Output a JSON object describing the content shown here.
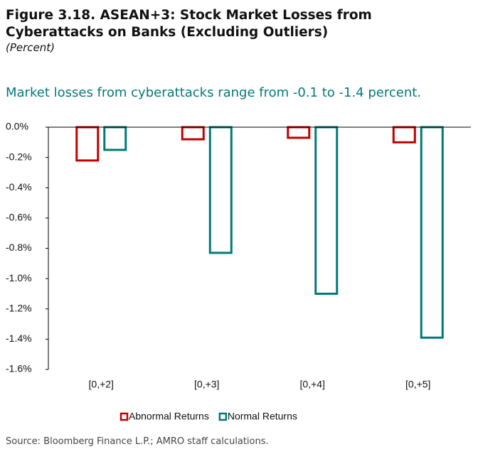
{
  "chart_data": {
    "type": "bar",
    "title": "Figure 3.18. ASEAN+3: Stock Market Losses from Cyberattacks on Banks (Excluding Outliers)",
    "subtitle": "(Percent)",
    "annotation": "Market losses from cyberattacks range from -0.1 to -1.4 percent.",
    "source": "Source: Bloomberg Finance L.P.; AMRO staff calculations.",
    "categories": [
      "[0,+2]",
      "[0,+3]",
      "[0,+4]",
      "[0,+5]"
    ],
    "series": [
      {
        "name": "Abnormal Returns",
        "color": "#c00000",
        "values": [
          -0.22,
          -0.08,
          -0.07,
          -0.1
        ]
      },
      {
        "name": "Normal Returns",
        "color": "#007a78",
        "values": [
          -0.15,
          -0.83,
          -1.1,
          -1.39
        ]
      }
    ],
    "ylim": [
      -1.6,
      0
    ],
    "yticks": [
      {
        "value": 0,
        "label": "0.0%"
      },
      {
        "value": -0.2,
        "label": "-0.2%"
      },
      {
        "value": -0.4,
        "label": "-0.4%"
      },
      {
        "value": -0.6,
        "label": "-0.6%"
      },
      {
        "value": -0.8,
        "label": "-0.8%"
      },
      {
        "value": -1.0,
        "label": "-1.0%"
      },
      {
        "value": -1.2,
        "label": "-1.2%"
      },
      {
        "value": -1.4,
        "label": "-1.4%"
      },
      {
        "value": -1.6,
        "label": "-1.6%"
      }
    ],
    "legend": "bottom"
  }
}
